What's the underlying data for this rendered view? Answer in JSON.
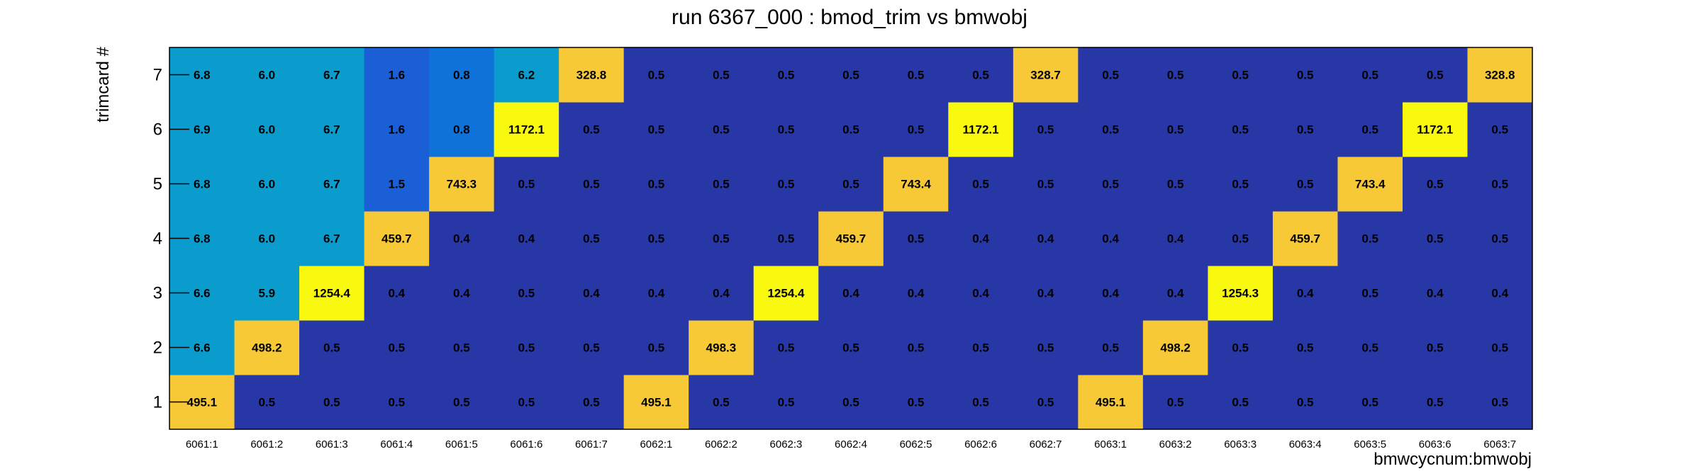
{
  "chart_data": {
    "type": "heatmap",
    "title": "run 6367_000 : bmod_trim vs bmwobj",
    "xlabel": "bmwcycnum:bmwobj",
    "ylabel": "trimcard #",
    "x_categories": [
      "6061:1",
      "6061:2",
      "6061:3",
      "6061:4",
      "6061:5",
      "6061:6",
      "6061:7",
      "6062:1",
      "6062:2",
      "6062:3",
      "6062:4",
      "6062:5",
      "6062:6",
      "6062:7",
      "6063:1",
      "6063:2",
      "6063:3",
      "6063:4",
      "6063:5",
      "6063:6",
      "6063:7"
    ],
    "y_categories": [
      "1",
      "2",
      "3",
      "4",
      "5",
      "6",
      "7"
    ],
    "values": [
      [
        495.1,
        0.5,
        0.5,
        0.5,
        0.5,
        0.5,
        0.5,
        495.1,
        0.5,
        0.5,
        0.5,
        0.5,
        0.5,
        0.5,
        495.1,
        0.5,
        0.5,
        0.5,
        0.5,
        0.5,
        0.5
      ],
      [
        6.6,
        498.2,
        0.5,
        0.5,
        0.5,
        0.5,
        0.5,
        0.5,
        498.3,
        0.5,
        0.5,
        0.5,
        0.5,
        0.5,
        0.5,
        498.2,
        0.5,
        0.5,
        0.5,
        0.5,
        0.5
      ],
      [
        6.6,
        5.9,
        1254.4,
        0.4,
        0.4,
        0.5,
        0.4,
        0.4,
        0.4,
        1254.4,
        0.4,
        0.4,
        0.4,
        0.4,
        0.4,
        0.4,
        1254.3,
        0.4,
        0.5,
        0.4,
        0.4
      ],
      [
        6.8,
        6.0,
        6.7,
        459.7,
        0.4,
        0.4,
        0.5,
        0.5,
        0.5,
        0.5,
        459.7,
        0.5,
        0.4,
        0.4,
        0.4,
        0.4,
        0.5,
        459.7,
        0.5,
        0.5,
        0.5
      ],
      [
        6.8,
        6.0,
        6.7,
        1.5,
        743.3,
        0.5,
        0.5,
        0.5,
        0.5,
        0.5,
        0.5,
        743.4,
        0.5,
        0.5,
        0.5,
        0.5,
        0.5,
        0.5,
        743.4,
        0.5,
        0.5
      ],
      [
        6.9,
        6.0,
        6.7,
        1.6,
        0.8,
        1172.1,
        0.5,
        0.5,
        0.5,
        0.5,
        0.5,
        0.5,
        1172.1,
        0.5,
        0.5,
        0.5,
        0.5,
        0.5,
        0.5,
        1172.1,
        0.5
      ],
      [
        6.8,
        6.0,
        6.7,
        1.6,
        0.8,
        6.2,
        328.8,
        0.5,
        0.5,
        0.5,
        0.5,
        0.5,
        0.5,
        328.7,
        0.5,
        0.5,
        0.5,
        0.5,
        0.5,
        0.5,
        328.8
      ]
    ],
    "value_labels_shown": true,
    "colors": {
      "near_zero": "#2737a5",
      "low_1": "#1a5fd6",
      "low_2": "#0f72d8",
      "low_6": "#0a9ccd",
      "mid": "#f8c936",
      "high": "#f9f90f"
    },
    "grid": false,
    "legend": "none"
  }
}
